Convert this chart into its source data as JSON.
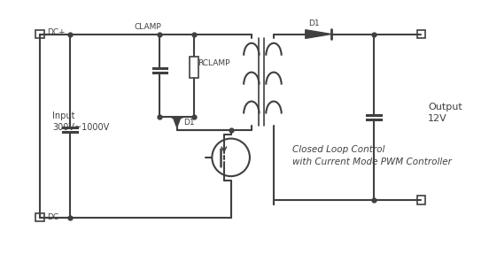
{
  "background_color": "#ffffff",
  "line_color": "#404040",
  "line_width": 1.5,
  "text_color": "#404040",
  "title": "",
  "labels": {
    "dc_plus": "DC+",
    "dc_minus": "DC-",
    "input": "Input\n300V~1000V",
    "clamp": "CLAMP",
    "rclamp": "RCLAMP",
    "d1_clamp": "D1",
    "d1_out": "D1",
    "output": "Output\n12V",
    "control": "Closed Loop Control\nwith Current Mode PWM Controller"
  },
  "figsize": [
    5.52,
    2.87
  ],
  "dpi": 100
}
